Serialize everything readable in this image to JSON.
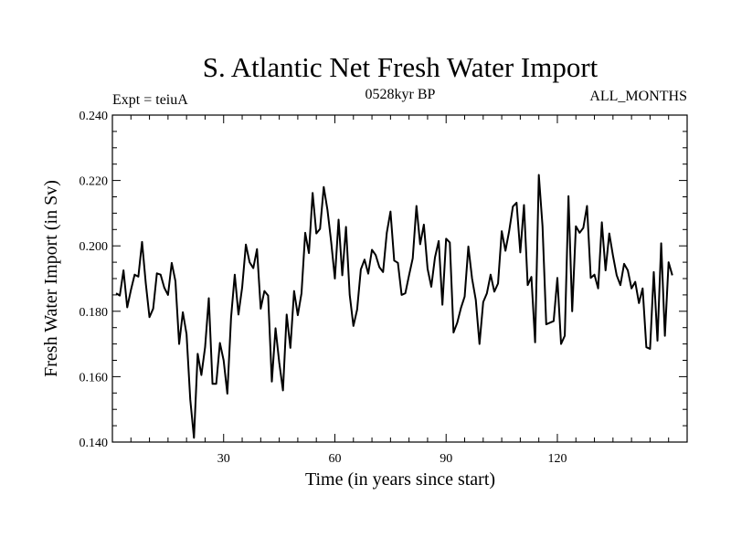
{
  "chart_data": {
    "type": "line",
    "title": "S. Atlantic Net Fresh Water Import",
    "subtitle_left": "Expt = teiuA",
    "subtitle_center": "0528kyr BP",
    "subtitle_right": "ALL_MONTHS",
    "xlabel": "Time (in years since start)",
    "ylabel": "Fresh Water Import (in Sv)",
    "xlim": [
      0,
      155
    ],
    "ylim": [
      0.14,
      0.24
    ],
    "x_ticks": [
      30,
      60,
      90,
      120
    ],
    "x_tick_labels": [
      "30",
      "60",
      "90",
      "120"
    ],
    "y_ticks": [
      0.14,
      0.16,
      0.18,
      0.2,
      0.22,
      0.24
    ],
    "y_tick_labels": [
      "0.140",
      "0.160",
      "0.180",
      "0.200",
      "0.220",
      "0.240"
    ],
    "x_start": 1,
    "x_step": 1,
    "series": [
      {
        "name": "Fresh Water Import",
        "color": "#000000",
        "values": [
          0.1855,
          0.1848,
          0.1925,
          0.1812,
          0.1865,
          0.1912,
          0.1906,
          0.2012,
          0.1886,
          0.1782,
          0.1808,
          0.1916,
          0.1912,
          0.1872,
          0.185,
          0.1948,
          0.1892,
          0.17,
          0.1797,
          0.173,
          0.153,
          0.1413,
          0.167,
          0.1605,
          0.169,
          0.184,
          0.1578,
          0.1578,
          0.1703,
          0.165,
          0.1548,
          0.178,
          0.1912,
          0.179,
          0.1873,
          0.2004,
          0.195,
          0.1932,
          0.199,
          0.1808,
          0.1862,
          0.1848,
          0.1585,
          0.1748,
          0.1643,
          0.1558,
          0.179,
          0.1688,
          0.1862,
          0.1788,
          0.1855,
          0.204,
          0.1978,
          0.2162,
          0.2038,
          0.2052,
          0.218,
          0.211,
          0.2012,
          0.19,
          0.208,
          0.191,
          0.2058,
          0.185,
          0.1755,
          0.1805,
          0.1928,
          0.1958,
          0.1915,
          0.1988,
          0.1972,
          0.1935,
          0.192,
          0.204,
          0.2105,
          0.1955,
          0.1948,
          0.185,
          0.1855,
          0.191,
          0.1962,
          0.2122,
          0.2005,
          0.2065,
          0.193,
          0.1875,
          0.1965,
          0.2015,
          0.182,
          0.2022,
          0.201,
          0.1735,
          0.1765,
          0.181,
          0.1845,
          0.1998,
          0.19,
          0.1835,
          0.17,
          0.1828,
          0.1855,
          0.1912,
          0.186,
          0.1885,
          0.2045,
          0.1985,
          0.2045,
          0.212,
          0.2132,
          0.198,
          0.2125,
          0.188,
          0.1905,
          0.1705,
          0.2217,
          0.206,
          0.176,
          0.1765,
          0.177,
          0.1902,
          0.17,
          0.1725,
          0.2152,
          0.18,
          0.206,
          0.204,
          0.2055,
          0.2122,
          0.1902,
          0.1912,
          0.187,
          0.2072,
          0.1925,
          0.2038,
          0.197,
          0.191,
          0.188,
          0.1945,
          0.1925,
          0.187,
          0.189,
          0.1825,
          0.187,
          0.169,
          0.1685,
          0.192,
          0.171,
          0.2008,
          0.1725,
          0.195,
          0.191
        ]
      }
    ]
  }
}
